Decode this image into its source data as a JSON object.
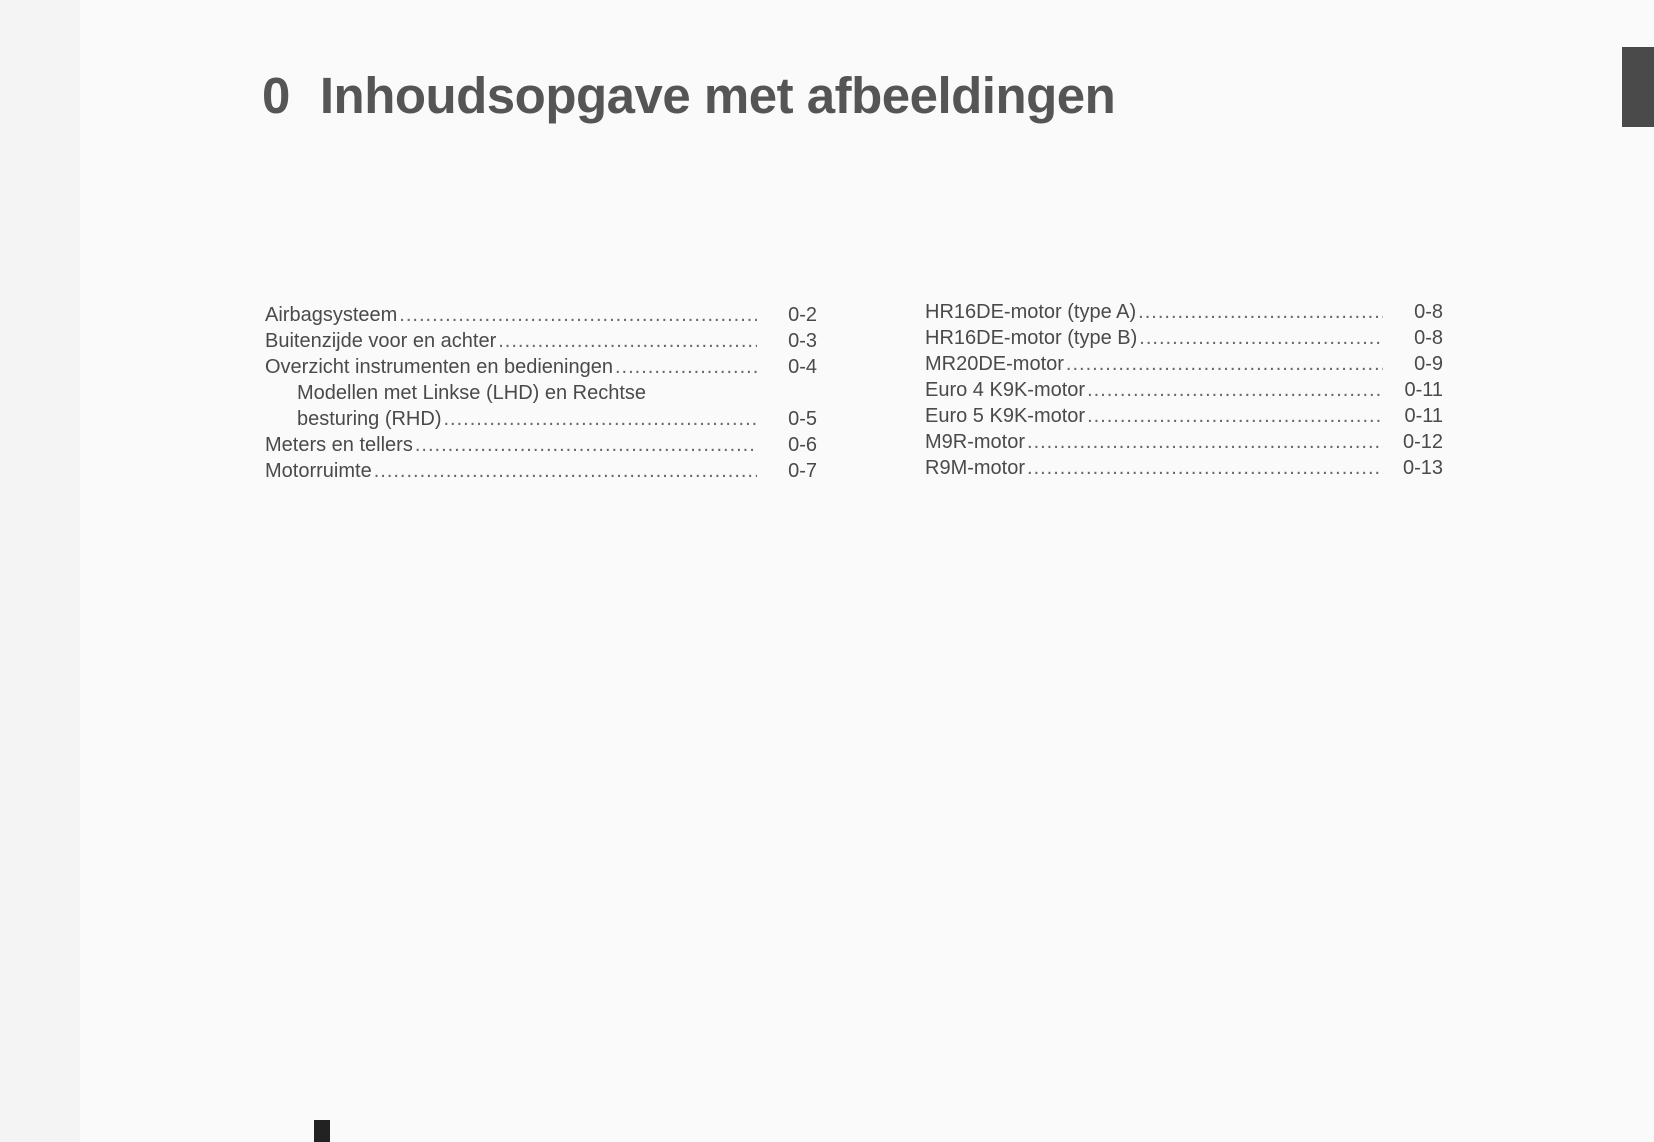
{
  "title": {
    "number": "0",
    "text": "Inhoudsopgave met afbeeldingen"
  },
  "toc_left": [
    {
      "label": "Airbagsysteem",
      "page": "0-2"
    },
    {
      "label": "Buitenzijde voor en achter",
      "page": "0-3"
    },
    {
      "label": "Overzicht instrumenten en bedieningen",
      "page": "0-4"
    },
    {
      "label": "Modellen met Linkse (LHD) en Rechtse",
      "page": ""
    },
    {
      "label": "besturing (RHD)",
      "page": "0-5"
    },
    {
      "label": "Meters en tellers",
      "page": "0-6"
    },
    {
      "label": "Motorruimte",
      "page": "0-7"
    }
  ],
  "toc_right": [
    {
      "label": "HR16DE-motor (type A)",
      "page": "0-8"
    },
    {
      "label": "HR16DE-motor (type B)",
      "page": "0-8"
    },
    {
      "label": "MR20DE-motor",
      "page": "0-9"
    },
    {
      "label": "Euro 4 K9K-motor",
      "page": "0-11"
    },
    {
      "label": "Euro 5 K9K-motor",
      "page": "0-11"
    },
    {
      "label": "M9R-motor",
      "page": "0-12"
    },
    {
      "label": "R9M-motor",
      "page": "0-13"
    }
  ]
}
